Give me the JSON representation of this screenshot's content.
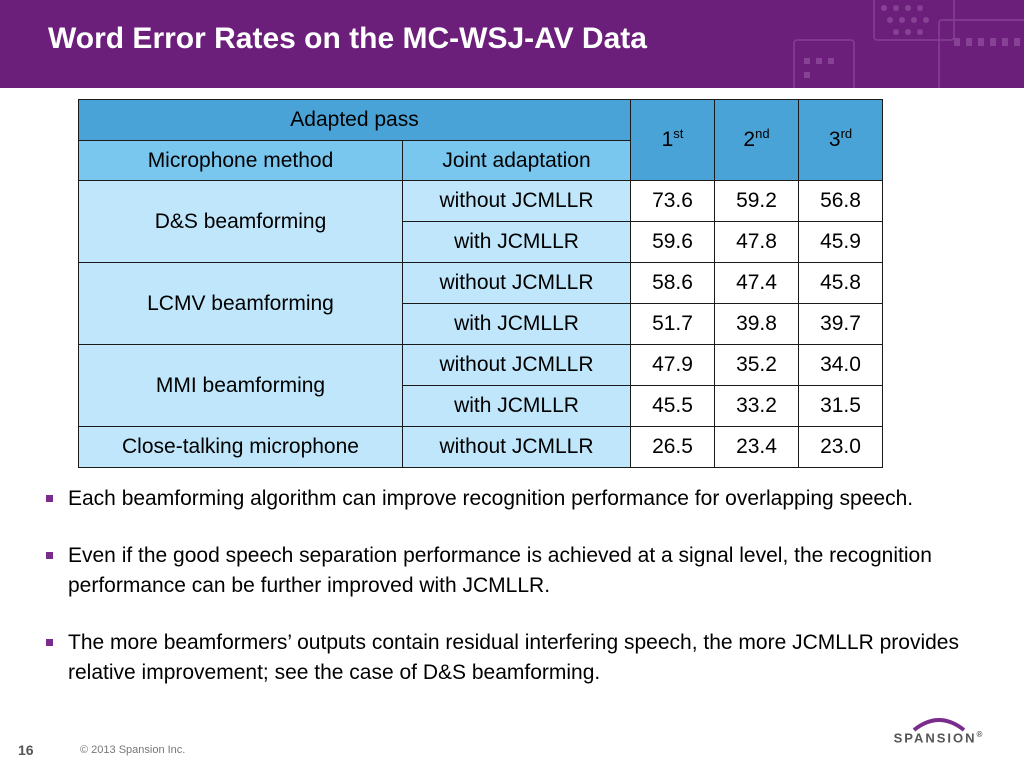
{
  "slide": {
    "title": "Word Error Rates on the MC-WSJ-AV Data",
    "page_number": "16",
    "copyright": "© 2013 Spansion Inc.",
    "logo_text": "SPANSION",
    "logo_mark": "®"
  },
  "table": {
    "header_adapted": "Adapted pass",
    "header_method": "Microphone method",
    "header_joint": "Joint adaptation",
    "passes": [
      {
        "num": "1",
        "sup": "st"
      },
      {
        "num": "2",
        "sup": "nd"
      },
      {
        "num": "3",
        "sup": "rd"
      }
    ],
    "groups": [
      {
        "method": "D&S beamforming",
        "rows": [
          {
            "adaptation": "without JCMLLR",
            "values": [
              "73.6",
              "59.2",
              "56.8"
            ]
          },
          {
            "adaptation": "with JCMLLR",
            "values": [
              "59.6",
              "47.8",
              "45.9"
            ]
          }
        ]
      },
      {
        "method": "LCMV beamforming",
        "rows": [
          {
            "adaptation": "without JCMLLR",
            "values": [
              "58.6",
              "47.4",
              "45.8"
            ]
          },
          {
            "adaptation": "with JCMLLR",
            "values": [
              "51.7",
              "39.8",
              "39.7"
            ]
          }
        ]
      },
      {
        "method": "MMI beamforming",
        "rows": [
          {
            "adaptation": "without JCMLLR",
            "values": [
              "47.9",
              "35.2",
              "34.0"
            ]
          },
          {
            "adaptation": "with JCMLLR",
            "values": [
              "45.5",
              "33.2",
              "31.5"
            ]
          }
        ]
      },
      {
        "method": "Close-talking microphone",
        "rows": [
          {
            "adaptation": "without JCMLLR",
            "values": [
              "26.5",
              "23.4",
              "23.0"
            ]
          }
        ]
      }
    ]
  },
  "bullets": [
    "Each beamforming algorithm can improve recognition performance for overlapping speech.",
    "Even if the good speech separation performance is achieved at a signal level, the recognition performance can be further improved with JCMLLR.",
    "The more beamformers’ outputs contain residual interfering speech, the more JCMLLR  provides relative improvement; see the case of D&S beamforming."
  ],
  "colors": {
    "header_bg": "#6b1f7a",
    "table_header": "#4aa3d6",
    "table_subheader": "#79c6ee",
    "table_method_cell": "#bfe6fa",
    "bullet_marker": "#7a2c8c"
  }
}
